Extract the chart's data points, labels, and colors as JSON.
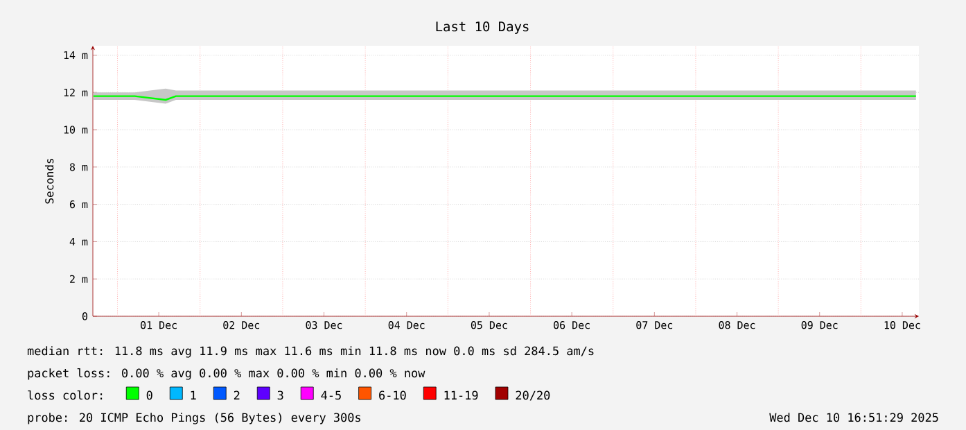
{
  "chart_data": {
    "type": "line",
    "title": "Last 10 Days",
    "ylabel": "Seconds",
    "x": [
      "2025-11-30T17:00",
      "2025-12-01T05:00",
      "2025-12-01T14:00",
      "2025-12-01T17:00",
      "2025-12-02T05:00",
      "2025-12-02T17:00",
      "2025-12-03T05:00",
      "2025-12-03T17:00",
      "2025-12-04T05:00",
      "2025-12-04T17:00",
      "2025-12-05T05:00",
      "2025-12-05T17:00",
      "2025-12-06T05:00",
      "2025-12-06T17:00",
      "2025-12-07T05:00",
      "2025-12-07T17:00",
      "2025-12-08T05:00",
      "2025-12-08T17:00",
      "2025-12-09T05:00",
      "2025-12-09T17:00",
      "2025-12-10T05:00",
      "2025-12-10T16:00"
    ],
    "series": [
      {
        "name": "0",
        "color": "#00ff00",
        "values": [
          11.8,
          11.8,
          11.6,
          11.8,
          11.8,
          11.8,
          11.8,
          11.8,
          11.8,
          11.8,
          11.8,
          11.8,
          11.8,
          11.8,
          11.8,
          11.8,
          11.8,
          11.8,
          11.8,
          11.8,
          11.8,
          11.8
        ],
        "lower": [
          11.6,
          11.6,
          11.4,
          11.6,
          11.6,
          11.6,
          11.6,
          11.6,
          11.6,
          11.6,
          11.6,
          11.6,
          11.6,
          11.6,
          11.6,
          11.6,
          11.6,
          11.6,
          11.6,
          11.6,
          11.6,
          11.6
        ],
        "upper": [
          12.0,
          12.0,
          12.2,
          12.1,
          12.1,
          12.1,
          12.1,
          12.1,
          12.1,
          12.1,
          12.1,
          12.1,
          12.1,
          12.1,
          12.1,
          12.1,
          12.1,
          12.1,
          12.1,
          12.1,
          12.1,
          12.1
        ]
      },
      {
        "name": "1",
        "color": "#00b8ff",
        "values": [
          null,
          null,
          null,
          null,
          null,
          null,
          null,
          null,
          null,
          null,
          null,
          null,
          null,
          null,
          null,
          null,
          null,
          null,
          null,
          null,
          null,
          null
        ]
      },
      {
        "name": "2",
        "color": "#0059ff",
        "values": [
          null,
          null,
          null,
          null,
          null,
          null,
          null,
          null,
          null,
          null,
          null,
          null,
          null,
          null,
          null,
          null,
          null,
          null,
          null,
          null,
          null,
          null
        ]
      },
      {
        "name": "3",
        "color": "#5e00ff",
        "values": [
          null,
          null,
          null,
          null,
          null,
          null,
          null,
          null,
          null,
          null,
          null,
          null,
          null,
          null,
          null,
          null,
          null,
          null,
          null,
          null,
          null,
          null
        ]
      },
      {
        "name": "4-5",
        "color": "#ff00ff",
        "values": [
          null,
          null,
          null,
          null,
          null,
          null,
          null,
          null,
          null,
          null,
          null,
          null,
          null,
          null,
          null,
          null,
          null,
          null,
          null,
          null,
          null,
          null
        ]
      },
      {
        "name": "6-10",
        "color": "#ff5500",
        "values": [
          null,
          null,
          null,
          null,
          null,
          null,
          null,
          null,
          null,
          null,
          null,
          null,
          null,
          null,
          null,
          null,
          null,
          null,
          null,
          null,
          null,
          null
        ]
      },
      {
        "name": "11-19",
        "color": "#ff0000",
        "values": [
          null,
          null,
          null,
          null,
          null,
          null,
          null,
          null,
          null,
          null,
          null,
          null,
          null,
          null,
          null,
          null,
          null,
          null,
          null,
          null,
          null,
          null
        ]
      },
      {
        "name": "20/20",
        "color": "#a10000",
        "values": [
          null,
          null,
          null,
          null,
          null,
          null,
          null,
          null,
          null,
          null,
          null,
          null,
          null,
          null,
          null,
          null,
          null,
          null,
          null,
          null,
          null,
          null
        ]
      }
    ],
    "legend": "bottom",
    "legend_title": "loss color:",
    "grid": true,
    "xlim": [
      "2025-11-30T16:51",
      "2025-12-10T16:51"
    ],
    "xticks": [
      {
        "value": "2025-12-01T00:00",
        "label": null
      },
      {
        "value": "2025-12-02T00:00",
        "label": null
      },
      {
        "value": "2025-12-03T00:00",
        "label": null
      },
      {
        "value": "2025-12-04T00:00",
        "label": null
      },
      {
        "value": "2025-12-05T00:00",
        "label": null
      },
      {
        "value": "2025-12-06T00:00",
        "label": null
      },
      {
        "value": "2025-12-07T00:00",
        "label": null
      },
      {
        "value": "2025-12-08T00:00",
        "label": null
      },
      {
        "value": "2025-12-09T00:00",
        "label": null
      },
      {
        "value": "2025-12-10T00:00",
        "label": null
      },
      {
        "value": "2025-12-01T12:00",
        "label": "01 Dec"
      },
      {
        "value": "2025-12-02T12:00",
        "label": "02 Dec"
      },
      {
        "value": "2025-12-03T12:00",
        "label": "03 Dec"
      },
      {
        "value": "2025-12-04T12:00",
        "label": "04 Dec"
      },
      {
        "value": "2025-12-05T12:00",
        "label": "05 Dec"
      },
      {
        "value": "2025-12-06T12:00",
        "label": "06 Dec"
      },
      {
        "value": "2025-12-07T12:00",
        "label": "07 Dec"
      },
      {
        "value": "2025-12-08T12:00",
        "label": "08 Dec"
      },
      {
        "value": "2025-12-09T12:00",
        "label": "09 Dec"
      },
      {
        "value": "2025-12-10T12:00",
        "label": "10 Dec"
      }
    ],
    "ylim": [
      0,
      14.5
    ],
    "yticks": [
      0,
      {
        "value": 2,
        "label": "2 m"
      },
      {
        "value": 4,
        "label": "4 m"
      },
      {
        "value": 6,
        "label": "6 m"
      },
      {
        "value": 8,
        "label": "8 m"
      },
      {
        "value": 10,
        "label": "10 m"
      },
      {
        "value": 12,
        "label": "12 m"
      },
      {
        "value": 14,
        "label": "14 m"
      }
    ],
    "annotations": [
      "median rtt:  11.8 ms avg  11.9 ms max  11.6 ms min  11.8 ms now  0.0 ms sd  284.5   am/s",
      "packet loss: 0.00 % avg  0.00 % max  0.00 % min  0.00 % now",
      "probe:       20 ICMP Echo Pings (56 Bytes) every 300s",
      "Wed Dec 10 16:51:29 2025"
    ]
  }
}
